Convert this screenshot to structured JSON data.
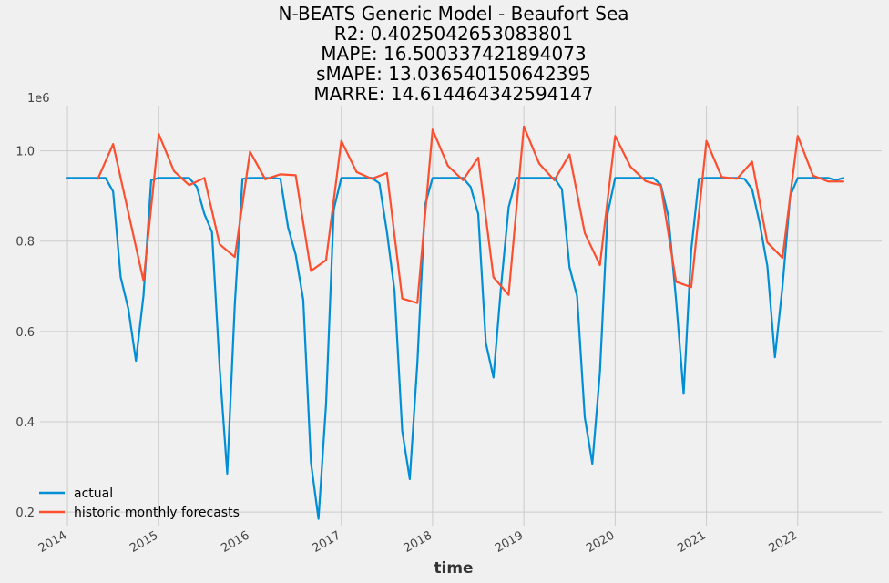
{
  "chart_data": {
    "type": "line",
    "title_lines": [
      "N-BEATS Generic Model - Beaufort Sea",
      "R2: 0.4025042653083801",
      "MAPE: 16.500337421894073",
      "sMAPE: 13.036540150642395",
      "MARRE: 14.614464342594147"
    ],
    "xlabel": "time",
    "ylabel": "",
    "y_offset_label": "1e6",
    "x_tick_labels": [
      "2014",
      "2015",
      "2016",
      "2017",
      "2018",
      "2019",
      "2020",
      "2021",
      "2022"
    ],
    "y_tick_labels": [
      "0.2",
      "0.4",
      "0.6",
      "0.8",
      "1.0"
    ],
    "y_ticks": [
      0.2,
      0.4,
      0.6,
      0.8,
      1.0
    ],
    "ylim": [
      0.17,
      1.1
    ],
    "xlim": [
      2013.7,
      2022.92
    ],
    "grid": true,
    "legend_position": "bottom-left",
    "series": [
      {
        "name": "actual",
        "color": "#008fd5",
        "points": [
          [
            2014.0,
            0.94
          ],
          [
            2014.083,
            0.94
          ],
          [
            2014.167,
            0.94
          ],
          [
            2014.25,
            0.94
          ],
          [
            2014.333,
            0.94
          ],
          [
            2014.417,
            0.94
          ],
          [
            2014.5,
            0.91
          ],
          [
            2014.583,
            0.72
          ],
          [
            2014.667,
            0.65
          ],
          [
            2014.75,
            0.535
          ],
          [
            2014.833,
            0.68
          ],
          [
            2014.917,
            0.935
          ],
          [
            2015.0,
            0.94
          ],
          [
            2015.083,
            0.94
          ],
          [
            2015.167,
            0.94
          ],
          [
            2015.25,
            0.94
          ],
          [
            2015.333,
            0.94
          ],
          [
            2015.417,
            0.92
          ],
          [
            2015.5,
            0.86
          ],
          [
            2015.583,
            0.82
          ],
          [
            2015.667,
            0.52
          ],
          [
            2015.75,
            0.285
          ],
          [
            2015.833,
            0.66
          ],
          [
            2015.917,
            0.938
          ],
          [
            2016.0,
            0.94
          ],
          [
            2016.083,
            0.94
          ],
          [
            2016.167,
            0.94
          ],
          [
            2016.25,
            0.94
          ],
          [
            2016.333,
            0.938
          ],
          [
            2016.417,
            0.83
          ],
          [
            2016.5,
            0.77
          ],
          [
            2016.583,
            0.67
          ],
          [
            2016.667,
            0.31
          ],
          [
            2016.75,
            0.185
          ],
          [
            2016.833,
            0.44
          ],
          [
            2016.917,
            0.87
          ],
          [
            2017.0,
            0.94
          ],
          [
            2017.083,
            0.94
          ],
          [
            2017.167,
            0.94
          ],
          [
            2017.25,
            0.94
          ],
          [
            2017.333,
            0.94
          ],
          [
            2017.417,
            0.928
          ],
          [
            2017.5,
            0.82
          ],
          [
            2017.583,
            0.69
          ],
          [
            2017.667,
            0.38
          ],
          [
            2017.75,
            0.273
          ],
          [
            2017.833,
            0.53
          ],
          [
            2017.917,
            0.88
          ],
          [
            2018.0,
            0.94
          ],
          [
            2018.083,
            0.94
          ],
          [
            2018.167,
            0.94
          ],
          [
            2018.25,
            0.94
          ],
          [
            2018.333,
            0.94
          ],
          [
            2018.417,
            0.92
          ],
          [
            2018.5,
            0.86
          ],
          [
            2018.583,
            0.575
          ],
          [
            2018.667,
            0.498
          ],
          [
            2018.75,
            0.7
          ],
          [
            2018.833,
            0.875
          ],
          [
            2018.917,
            0.94
          ],
          [
            2019.0,
            0.94
          ],
          [
            2019.083,
            0.94
          ],
          [
            2019.167,
            0.94
          ],
          [
            2019.25,
            0.94
          ],
          [
            2019.333,
            0.94
          ],
          [
            2019.417,
            0.915
          ],
          [
            2019.5,
            0.742
          ],
          [
            2019.583,
            0.678
          ],
          [
            2019.667,
            0.41
          ],
          [
            2019.75,
            0.307
          ],
          [
            2019.833,
            0.51
          ],
          [
            2019.917,
            0.86
          ],
          [
            2020.0,
            0.94
          ],
          [
            2020.083,
            0.94
          ],
          [
            2020.167,
            0.94
          ],
          [
            2020.25,
            0.94
          ],
          [
            2020.333,
            0.94
          ],
          [
            2020.417,
            0.94
          ],
          [
            2020.5,
            0.925
          ],
          [
            2020.583,
            0.855
          ],
          [
            2020.667,
            0.67
          ],
          [
            2020.75,
            0.462
          ],
          [
            2020.833,
            0.78
          ],
          [
            2020.917,
            0.938
          ],
          [
            2021.0,
            0.94
          ],
          [
            2021.083,
            0.94
          ],
          [
            2021.167,
            0.94
          ],
          [
            2021.25,
            0.94
          ],
          [
            2021.333,
            0.94
          ],
          [
            2021.417,
            0.938
          ],
          [
            2021.5,
            0.915
          ],
          [
            2021.583,
            0.84
          ],
          [
            2021.667,
            0.745
          ],
          [
            2021.75,
            0.543
          ],
          [
            2021.833,
            0.7
          ],
          [
            2021.917,
            0.9
          ],
          [
            2022.0,
            0.94
          ],
          [
            2022.083,
            0.94
          ],
          [
            2022.167,
            0.94
          ],
          [
            2022.25,
            0.94
          ],
          [
            2022.333,
            0.94
          ],
          [
            2022.417,
            0.935
          ],
          [
            2022.5,
            0.94
          ]
        ]
      },
      {
        "name": "historic monthly forecasts",
        "color": "#fc4f30",
        "points": [
          [
            2014.333,
            0.938
          ],
          [
            2014.5,
            1.015
          ],
          [
            2014.833,
            0.712
          ],
          [
            2015.0,
            1.037
          ],
          [
            2015.167,
            0.955
          ],
          [
            2015.333,
            0.924
          ],
          [
            2015.5,
            0.94
          ],
          [
            2015.667,
            0.793
          ],
          [
            2015.833,
            0.765
          ],
          [
            2016.0,
            0.998
          ],
          [
            2016.167,
            0.937
          ],
          [
            2016.333,
            0.948
          ],
          [
            2016.5,
            0.946
          ],
          [
            2016.667,
            0.734
          ],
          [
            2016.833,
            0.758
          ],
          [
            2017.0,
            1.022
          ],
          [
            2017.167,
            0.953
          ],
          [
            2017.333,
            0.938
          ],
          [
            2017.5,
            0.951
          ],
          [
            2017.667,
            0.673
          ],
          [
            2017.833,
            0.663
          ],
          [
            2018.0,
            1.047
          ],
          [
            2018.167,
            0.967
          ],
          [
            2018.333,
            0.935
          ],
          [
            2018.5,
            0.985
          ],
          [
            2018.667,
            0.72
          ],
          [
            2018.833,
            0.681
          ],
          [
            2019.0,
            1.054
          ],
          [
            2019.167,
            0.972
          ],
          [
            2019.333,
            0.935
          ],
          [
            2019.5,
            0.992
          ],
          [
            2019.667,
            0.818
          ],
          [
            2019.833,
            0.747
          ],
          [
            2020.0,
            1.033
          ],
          [
            2020.167,
            0.965
          ],
          [
            2020.333,
            0.933
          ],
          [
            2020.5,
            0.923
          ],
          [
            2020.667,
            0.71
          ],
          [
            2020.833,
            0.698
          ],
          [
            2021.0,
            1.022
          ],
          [
            2021.167,
            0.942
          ],
          [
            2021.333,
            0.938
          ],
          [
            2021.5,
            0.976
          ],
          [
            2021.667,
            0.797
          ],
          [
            2021.833,
            0.763
          ],
          [
            2022.0,
            1.033
          ],
          [
            2022.167,
            0.945
          ],
          [
            2022.333,
            0.932
          ],
          [
            2022.5,
            0.932
          ]
        ]
      }
    ]
  }
}
